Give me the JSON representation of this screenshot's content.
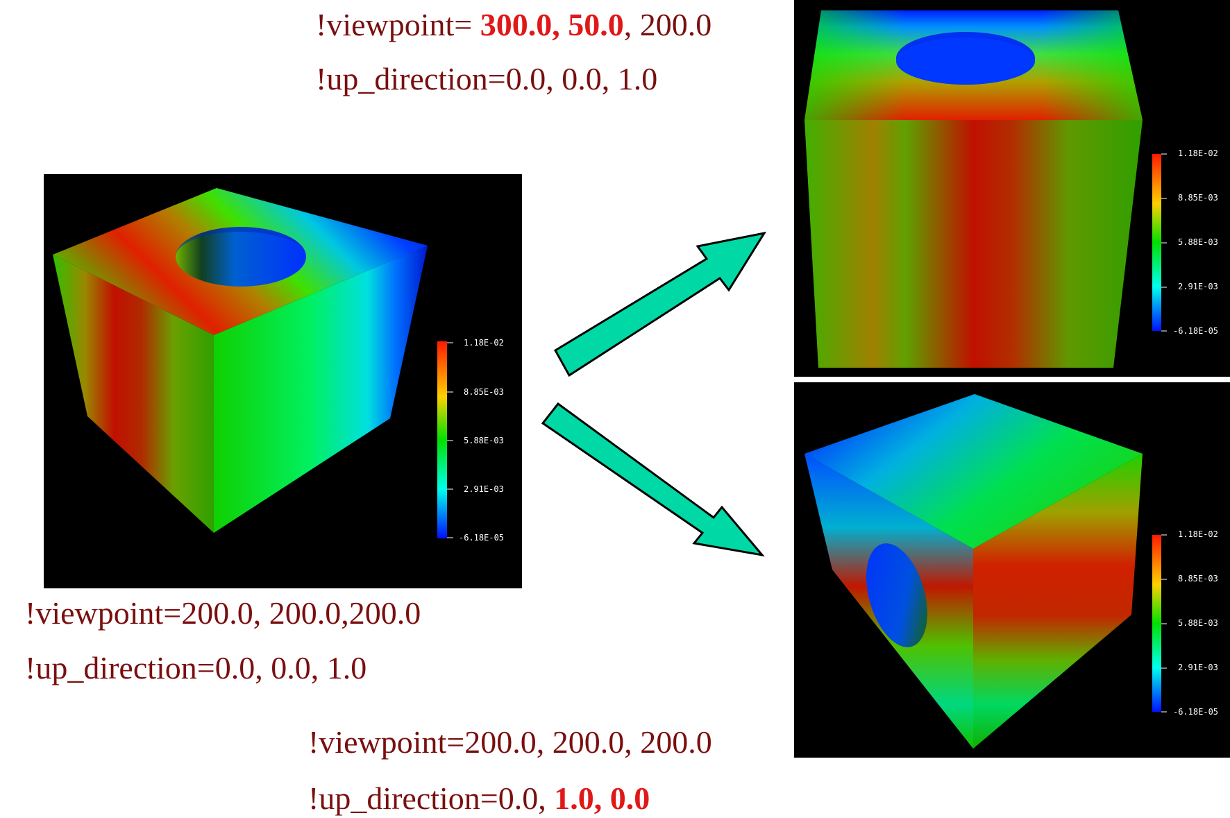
{
  "colors": {
    "caption_text": "#7a0f0f",
    "caption_highlight": "#e01818",
    "arrow_fill": "#00d9a6",
    "panel_background": "#000000"
  },
  "colorbar": {
    "ticks": [
      "1.18E-02",
      "8.85E-03",
      "5.88E-03",
      "2.91E-03",
      "-6.18E-05"
    ],
    "colors": [
      "#ff2200",
      "#ffd000",
      "#00e000",
      "#00ffee",
      "#0018ff"
    ]
  },
  "captions": {
    "left": {
      "viewpoint": "!viewpoint=200.0, 200.0,200.0",
      "up_direction": "!up_direction=0.0, 0.0, 1.0"
    },
    "top": {
      "viewpoint_prefix": "!viewpoint= ",
      "viewpoint_changed": "300.0, 50.0",
      "viewpoint_suffix": ", 200.0",
      "up_direction": "!up_direction=0.0, 0.0, 1.0"
    },
    "bottom": {
      "viewpoint": "!viewpoint=200.0, 200.0, 200.0",
      "up_prefix": "!up_direction=0.0, ",
      "up_changed": "1.0, 0.0"
    }
  },
  "arrows": [
    "arrow-to-top-view",
    "arrow-to-bottom-view"
  ]
}
